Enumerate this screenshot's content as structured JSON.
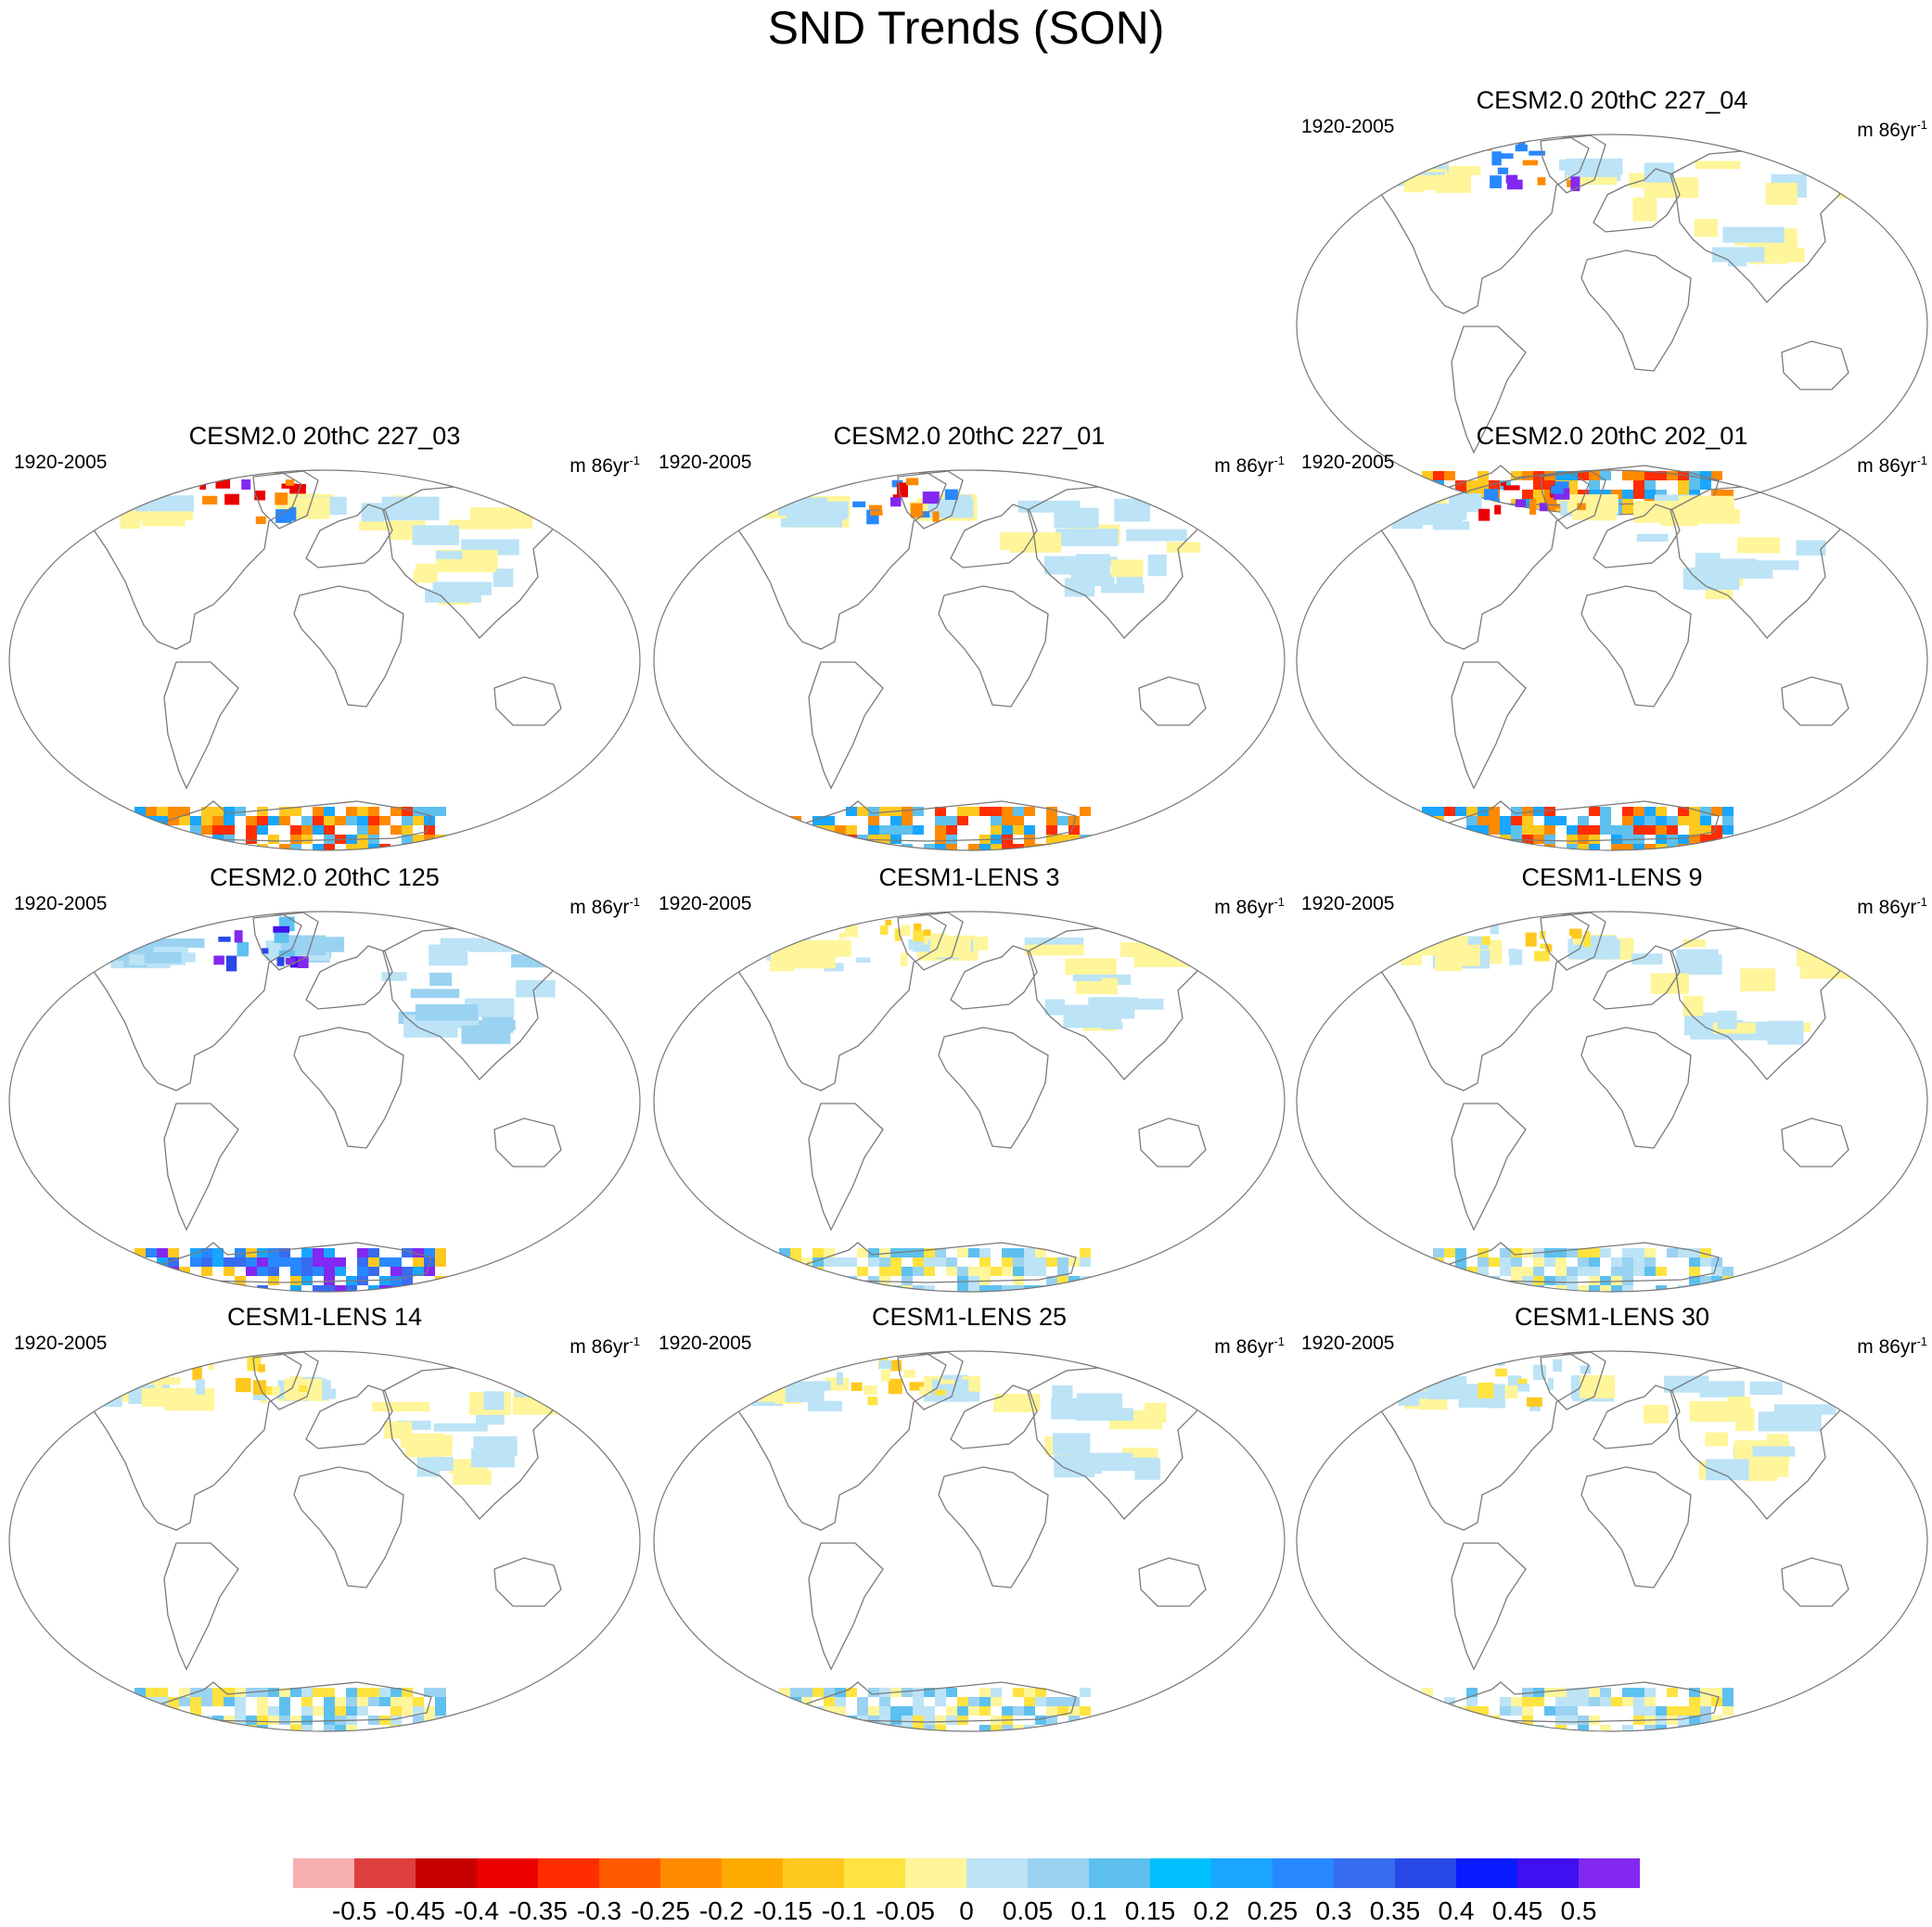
{
  "chart_data": {
    "type": "heatmap",
    "title": "SND Trends (SON)",
    "period": "1920-2005",
    "units": {
      "base": "m 86yr",
      "exponent": "-1"
    },
    "panels": [
      {
        "title": "CESM2.0 20thC 227_04",
        "style": "cesm2"
      },
      {
        "title": "CESM2.0 20thC 227_03",
        "style": "cesm2"
      },
      {
        "title": "CESM2.0 20thC 227_01",
        "style": "cesm2"
      },
      {
        "title": "CESM2.0 20thC 202_01",
        "style": "cesm2"
      },
      {
        "title": "CESM2.0 20thC 125",
        "style": "cesm2-purple"
      },
      {
        "title": "CESM1-LENS 3",
        "style": "lens"
      },
      {
        "title": "CESM1-LENS 9",
        "style": "lens"
      },
      {
        "title": "CESM1-LENS 14",
        "style": "lens"
      },
      {
        "title": "CESM1-LENS 25",
        "style": "lens"
      },
      {
        "title": "CESM1-LENS 30",
        "style": "lens"
      }
    ],
    "colorbar": {
      "labels": [
        "-0.5",
        "-0.45",
        "-0.4",
        "-0.35",
        "-0.3",
        "-0.25",
        "-0.2",
        "-0.15",
        "-0.1",
        "-0.05",
        "0",
        "0.05",
        "0.1",
        "0.15",
        "0.2",
        "0.25",
        "0.3",
        "0.35",
        "0.4",
        "0.45",
        "0.5"
      ],
      "colors": [
        "#f8afb0",
        "#de4040",
        "#c80000",
        "#ec0000",
        "#ff2d00",
        "#ff5a00",
        "#ff8a00",
        "#ffaa00",
        "#ffc81e",
        "#ffe340",
        "#fff59a",
        "#bce3f6",
        "#9ad2f2",
        "#5ec0ee",
        "#00c0ff",
        "#18a6ff",
        "#2888ff",
        "#386cf0",
        "#2848e8",
        "#0a1aff",
        "#4010f0",
        "#8228f0"
      ]
    }
  }
}
